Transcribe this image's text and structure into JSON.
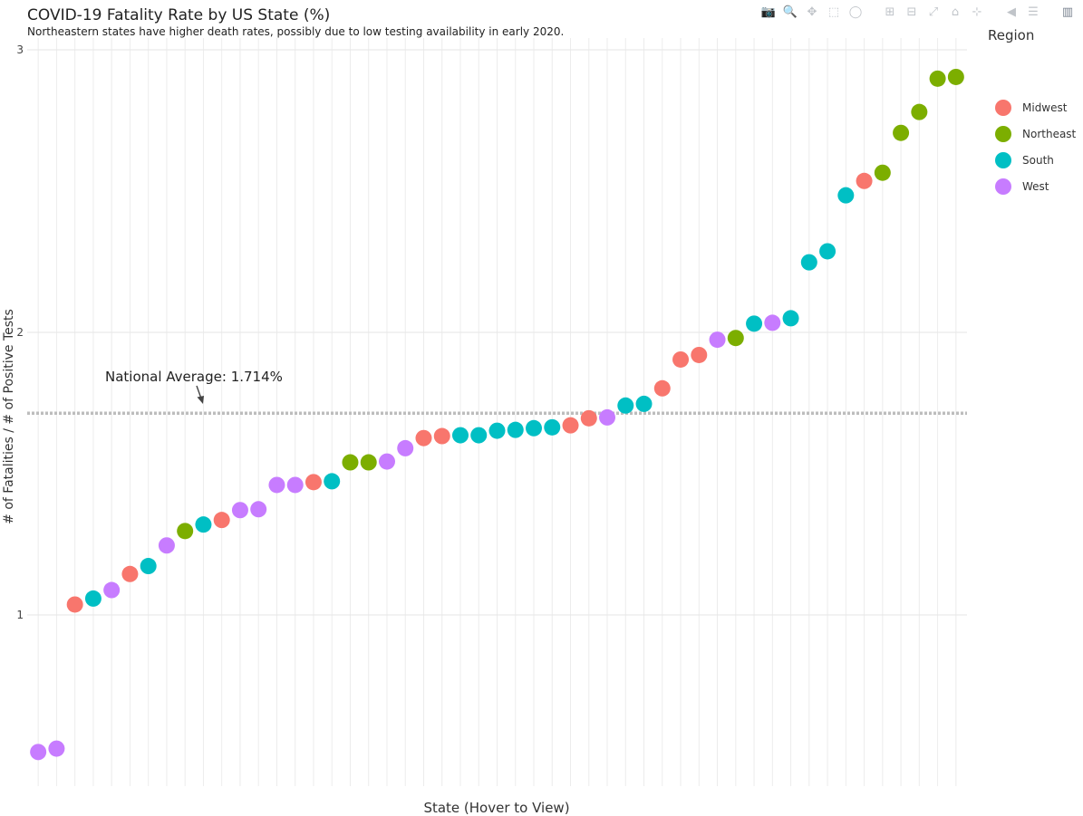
{
  "toolbar": {
    "buttons": [
      {
        "name": "camera-icon",
        "glyph": "📷"
      },
      {
        "name": "zoom-icon",
        "glyph": "🔍"
      },
      {
        "name": "pan-icon",
        "glyph": "✥"
      },
      {
        "name": "box-select-icon",
        "glyph": "⬚"
      },
      {
        "name": "lasso-select-icon",
        "glyph": "◯"
      },
      {
        "name": "zoom-in-icon",
        "glyph": "⊞"
      },
      {
        "name": "zoom-out-icon",
        "glyph": "⊟"
      },
      {
        "name": "autoscale-icon",
        "glyph": "⤢"
      },
      {
        "name": "home-icon",
        "glyph": "⌂"
      },
      {
        "name": "spike-lines-icon",
        "glyph": "⊹"
      },
      {
        "name": "hover-closest-icon",
        "glyph": "◀"
      },
      {
        "name": "hover-compare-icon",
        "glyph": "☰"
      },
      {
        "name": "plotly-logo-icon",
        "glyph": "▥"
      }
    ]
  },
  "chart_data": {
    "type": "scatter",
    "title": "COVID-19 Fatality Rate by US State (%)",
    "subtitle": "Northeastern states have higher death rates, possibly due to low testing availability in early 2020.",
    "xlabel": "State (Hover to View)",
    "ylabel": "# of Fatalities / # of Positive Tests",
    "ylim": [
      0.6,
      3.04
    ],
    "yticks": [
      1,
      2,
      3
    ],
    "grid": true,
    "legend": {
      "title": "Region",
      "placement": "right",
      "entries": [
        {
          "name": "Midwest",
          "color": "#F8766D"
        },
        {
          "name": "Northeast",
          "color": "#7CAE00"
        },
        {
          "name": "South",
          "color": "#00BFC4"
        },
        {
          "name": "West",
          "color": "#C77CFF"
        }
      ]
    },
    "reference_line": {
      "y": 1.714,
      "label": "National Average: 1.714%",
      "color": "#bdbdbd"
    },
    "points": [
      {
        "x": 1,
        "y": 0.515,
        "region": "West"
      },
      {
        "x": 2,
        "y": 0.527,
        "region": "West"
      },
      {
        "x": 3,
        "y": 1.037,
        "region": "Midwest"
      },
      {
        "x": 4,
        "y": 1.058,
        "region": "South"
      },
      {
        "x": 5,
        "y": 1.088,
        "region": "West"
      },
      {
        "x": 6,
        "y": 1.145,
        "region": "Midwest"
      },
      {
        "x": 7,
        "y": 1.173,
        "region": "South"
      },
      {
        "x": 8,
        "y": 1.246,
        "region": "West"
      },
      {
        "x": 9,
        "y": 1.297,
        "region": "Northeast"
      },
      {
        "x": 10,
        "y": 1.32,
        "region": "South"
      },
      {
        "x": 11,
        "y": 1.336,
        "region": "Midwest"
      },
      {
        "x": 12,
        "y": 1.371,
        "region": "West"
      },
      {
        "x": 13,
        "y": 1.374,
        "region": "West"
      },
      {
        "x": 14,
        "y": 1.46,
        "region": "West"
      },
      {
        "x": 15,
        "y": 1.46,
        "region": "West"
      },
      {
        "x": 16,
        "y": 1.47,
        "region": "Midwest"
      },
      {
        "x": 17,
        "y": 1.473,
        "region": "South"
      },
      {
        "x": 18,
        "y": 1.54,
        "region": "Northeast"
      },
      {
        "x": 19,
        "y": 1.54,
        "region": "Northeast"
      },
      {
        "x": 20,
        "y": 1.543,
        "region": "West"
      },
      {
        "x": 21,
        "y": 1.59,
        "region": "West"
      },
      {
        "x": 22,
        "y": 1.626,
        "region": "Midwest"
      },
      {
        "x": 23,
        "y": 1.633,
        "region": "Midwest"
      },
      {
        "x": 24,
        "y": 1.636,
        "region": "South"
      },
      {
        "x": 25,
        "y": 1.636,
        "region": "South"
      },
      {
        "x": 26,
        "y": 1.652,
        "region": "South"
      },
      {
        "x": 27,
        "y": 1.655,
        "region": "South"
      },
      {
        "x": 28,
        "y": 1.661,
        "region": "South"
      },
      {
        "x": 29,
        "y": 1.664,
        "region": "South"
      },
      {
        "x": 30,
        "y": 1.671,
        "region": "Midwest"
      },
      {
        "x": 31,
        "y": 1.696,
        "region": "Midwest"
      },
      {
        "x": 32,
        "y": 1.699,
        "region": "West"
      },
      {
        "x": 33,
        "y": 1.741,
        "region": "South"
      },
      {
        "x": 34,
        "y": 1.747,
        "region": "South"
      },
      {
        "x": 35,
        "y": 1.802,
        "region": "Midwest"
      },
      {
        "x": 36,
        "y": 1.904,
        "region": "Midwest"
      },
      {
        "x": 37,
        "y": 1.92,
        "region": "Midwest"
      },
      {
        "x": 38,
        "y": 1.974,
        "region": "West"
      },
      {
        "x": 39,
        "y": 1.98,
        "region": "Northeast"
      },
      {
        "x": 40,
        "y": 2.031,
        "region": "South"
      },
      {
        "x": 41,
        "y": 2.034,
        "region": "West"
      },
      {
        "x": 42,
        "y": 2.05,
        "region": "South"
      },
      {
        "x": 43,
        "y": 2.248,
        "region": "South"
      },
      {
        "x": 44,
        "y": 2.287,
        "region": "South"
      },
      {
        "x": 45,
        "y": 2.485,
        "region": "South"
      },
      {
        "x": 46,
        "y": 2.536,
        "region": "Midwest"
      },
      {
        "x": 47,
        "y": 2.565,
        "region": "Northeast"
      },
      {
        "x": 48,
        "y": 2.706,
        "region": "Northeast"
      },
      {
        "x": 49,
        "y": 2.78,
        "region": "Northeast"
      },
      {
        "x": 50,
        "y": 2.898,
        "region": "Northeast"
      },
      {
        "x": 51,
        "y": 2.904,
        "region": "Northeast"
      }
    ]
  }
}
